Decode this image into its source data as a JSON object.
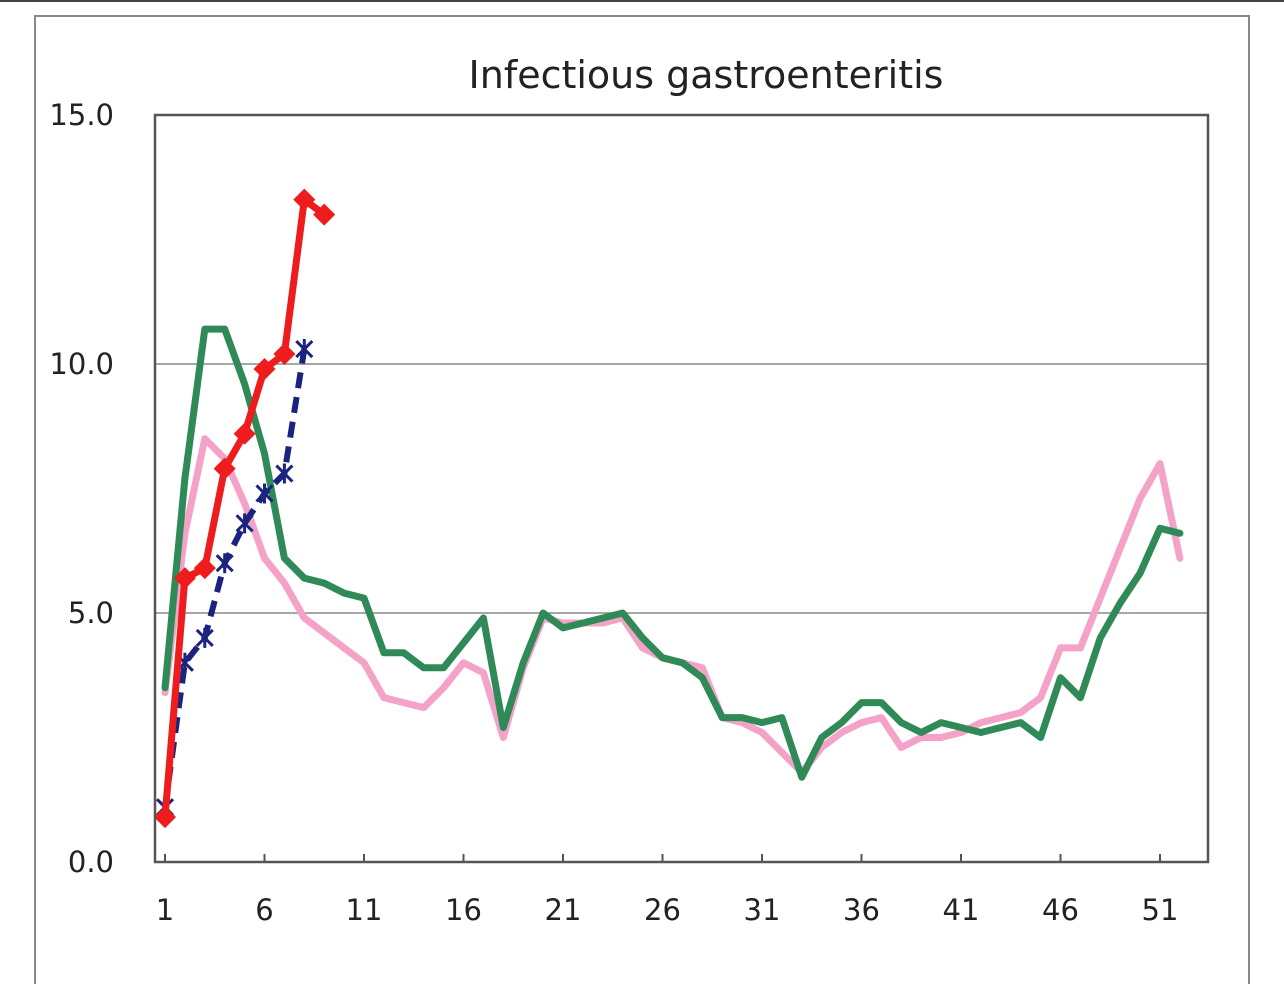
{
  "chart_data": {
    "type": "line",
    "title": "Infectious gastroenteritis",
    "xlabel": "",
    "ylabel": "",
    "xlim": [
      1,
      53
    ],
    "ylim": [
      0,
      15
    ],
    "x_ticks": [
      "1",
      "6",
      "11",
      "16",
      "21",
      "26",
      "31",
      "36",
      "41",
      "46",
      "51"
    ],
    "y_ticks": [
      "0.0",
      "5.0",
      "10.0",
      "15.0"
    ],
    "grid": "horizontal",
    "legend": "none",
    "series": [
      {
        "color": "#f4a2c8",
        "style": "solid",
        "x": [
          1,
          2,
          3,
          4,
          5,
          6,
          7,
          8,
          9,
          10,
          11,
          12,
          13,
          14,
          15,
          16,
          17,
          18,
          19,
          20,
          21,
          22,
          23,
          24,
          25,
          26,
          27,
          28,
          29,
          30,
          31,
          32,
          33,
          34,
          35,
          36,
          37,
          38,
          39,
          40,
          41,
          42,
          43,
          44,
          45,
          46,
          47,
          48,
          49,
          50,
          51,
          52
        ],
        "values": [
          3.4,
          6.6,
          8.5,
          8.1,
          7.2,
          6.1,
          5.6,
          4.9,
          4.6,
          4.3,
          4.0,
          3.3,
          3.2,
          3.1,
          3.5,
          4.0,
          3.8,
          2.5,
          3.9,
          4.9,
          4.8,
          4.8,
          4.8,
          4.9,
          4.3,
          4.1,
          4.0,
          3.9,
          2.9,
          2.8,
          2.6,
          2.2,
          1.8,
          2.3,
          2.6,
          2.8,
          2.9,
          2.3,
          2.5,
          2.5,
          2.6,
          2.8,
          2.9,
          3.0,
          3.3,
          4.3,
          4.3,
          5.3,
          6.3,
          7.3,
          8.0,
          6.1
        ]
      },
      {
        "color": "#2f8a57",
        "style": "solid",
        "x": [
          1,
          2,
          3,
          4,
          5,
          6,
          7,
          8,
          9,
          10,
          11,
          12,
          13,
          14,
          15,
          16,
          17,
          18,
          19,
          20,
          21,
          22,
          23,
          24,
          25,
          26,
          27,
          28,
          29,
          30,
          31,
          32,
          33,
          34,
          35,
          36,
          37,
          38,
          39,
          40,
          41,
          42,
          43,
          44,
          45,
          46,
          47,
          48,
          49,
          50,
          51,
          52
        ],
        "values": [
          3.5,
          7.7,
          10.7,
          10.7,
          9.6,
          8.2,
          6.1,
          5.7,
          5.6,
          5.4,
          5.3,
          4.2,
          4.2,
          3.9,
          3.9,
          4.4,
          4.9,
          2.7,
          4.0,
          5.0,
          4.7,
          4.8,
          4.9,
          5.0,
          4.5,
          4.1,
          4.0,
          3.7,
          2.9,
          2.9,
          2.8,
          2.9,
          1.7,
          2.5,
          2.8,
          3.2,
          3.2,
          2.8,
          2.6,
          2.8,
          2.7,
          2.6,
          2.7,
          2.8,
          2.5,
          3.7,
          3.3,
          4.5,
          5.2,
          5.8,
          6.7,
          6.6
        ]
      },
      {
        "color": "#1a237e",
        "style": "dashed",
        "marker": "asterisk",
        "x": [
          1,
          2,
          3,
          4,
          5,
          6,
          7,
          8
        ],
        "values": [
          1.1,
          4.0,
          4.5,
          6.0,
          6.8,
          7.4,
          7.8,
          10.3
        ]
      },
      {
        "color": "#ee1c1c",
        "style": "solid",
        "marker": "diamond",
        "x": [
          1,
          2,
          3,
          4,
          5,
          6,
          7,
          8,
          9
        ],
        "values": [
          0.9,
          5.7,
          5.9,
          7.9,
          8.6,
          9.9,
          10.2,
          13.3,
          13.0
        ]
      }
    ]
  }
}
